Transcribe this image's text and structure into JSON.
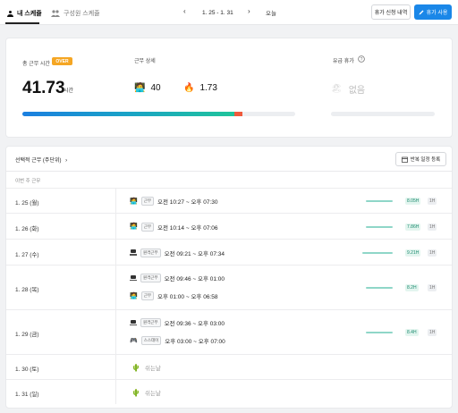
{
  "tabs": {
    "my_schedule": "내 스케쥴",
    "member_schedule": "구성원 스케쥴"
  },
  "date_nav": {
    "range": "1. 25 - 1. 31",
    "prev": "‹",
    "next": "›",
    "today": "오늘"
  },
  "buttons": {
    "leave_history": "휴가 신청 내역",
    "use_leave": "휴가 사용",
    "repeat_register": "반복 일정 등록"
  },
  "summary": {
    "total_label": "총 근무 시간",
    "over_badge": "OVER",
    "total_value": "41.73",
    "total_unit": "시간",
    "detail_label": "근무 상세",
    "worker_count": "40",
    "fire_value": "1.73",
    "leave_label": "유급 휴가",
    "leave_value": "없음",
    "progress": {
      "normal_fraction": 0.776,
      "over_fraction": 0.03,
      "normal_color": "#1b7fe0",
      "over_color": "#ef5a3c"
    }
  },
  "schedule": {
    "title": "선택적 근무 (주단위)",
    "week_label": "이번 주 근무",
    "rows": [
      {
        "date": "1. 25 (월)",
        "entries": [
          {
            "icon": "worker-emoji",
            "tag": "근무",
            "time": "오전 10:27 ~ 오후 07:30"
          }
        ],
        "hours": "8.05H",
        "break": "1H"
      },
      {
        "date": "1. 26 (화)",
        "entries": [
          {
            "icon": "worker-emoji",
            "tag": "근무",
            "time": "오전 10:14 ~ 오후 07:06"
          }
        ],
        "hours": "7.86H",
        "break": "1H"
      },
      {
        "date": "1. 27 (수)",
        "entries": [
          {
            "icon": "laptop-icon",
            "tag": "원격근무",
            "time": "오전 09:21 ~ 오후 07:34"
          }
        ],
        "hours": "9.21H",
        "break": "1H"
      },
      {
        "date": "1. 28 (목)",
        "entries": [
          {
            "icon": "laptop-icon",
            "tag": "원격근무",
            "time": "오전 09:46 ~ 오후 01:00"
          },
          {
            "icon": "worker-emoji",
            "tag": "근무",
            "time": "오후 01:00 ~ 오후 06:58"
          }
        ],
        "hours": "8.2H",
        "break": "1H"
      },
      {
        "date": "1. 29 (금)",
        "entries": [
          {
            "icon": "laptop-icon",
            "tag": "원격근무",
            "time": "오전 09:36 ~ 오후 03:00"
          },
          {
            "icon": "gamepad-icon",
            "tag": "스스데이",
            "time": "오후 03:00 ~ 오후 07:00"
          }
        ],
        "hours": "8.4H",
        "break": "1H"
      },
      {
        "date": "1. 30 (토)",
        "rest": "쉬는날"
      },
      {
        "date": "1. 31 (일)",
        "rest": "쉬는날"
      }
    ]
  }
}
